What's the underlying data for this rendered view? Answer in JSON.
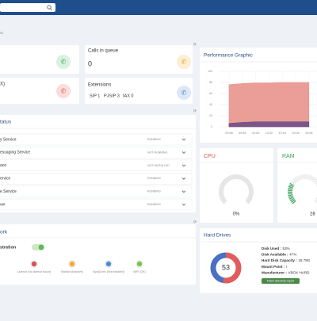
{
  "breadcrumb": "nt",
  "card3_title": "X)",
  "calls_card": {
    "title": "Calls in queue",
    "value": "0"
  },
  "extensions_card": {
    "title": "Extensions",
    "sip": "SIP 1",
    "pjsip": "PJSIP 3",
    "iax": "IAX 0"
  },
  "status": {
    "title": "tatus",
    "rows": [
      {
        "name": "y Service",
        "state": "RUNNING"
      },
      {
        "name": "essaging Service",
        "state": "NOT RUNNING"
      },
      {
        "name": "ace",
        "state": "NOT INSTALLED"
      },
      {
        "name": "ervice",
        "state": "RUNNING"
      },
      {
        "name": "e Service",
        "state": "RUNNING"
      },
      {
        "name": "ver",
        "state": "RUNNING"
      }
    ]
  },
  "network": {
    "title": "ork",
    "registration": "stration",
    "items": [
      {
        "label": "License (No license found)",
        "color": "#d9534f"
      },
      {
        "label": "Monitor (Inactive)",
        "color": "#f0ad2e"
      },
      {
        "label": "SysADmin (Not installed)",
        "color": "#4a90d9"
      },
      {
        "label": "WiFi (OK)",
        "color": "#7dc24b"
      }
    ]
  },
  "performance": {
    "title": "Performance Graphic",
    "chart": {
      "type": "area",
      "categories": [
        "09:56",
        "09:58",
        "10:00",
        "10:02",
        "10:04",
        "10:06",
        "10:08"
      ],
      "ylim": [
        0,
        100
      ],
      "yticks": [
        0,
        20,
        40,
        60,
        80,
        100
      ],
      "series": [
        {
          "color": "#e8948c",
          "values": [
            76,
            78,
            79,
            79,
            80,
            80,
            80
          ]
        },
        {
          "color": "#6e4f86",
          "values": [
            6,
            8,
            9,
            9,
            9,
            9,
            9
          ]
        }
      ]
    }
  },
  "cpu": {
    "title": "CPU",
    "value": 0,
    "value_label": "0%",
    "color": "#d9534f"
  },
  "ram": {
    "title": "RAM",
    "value": 28,
    "value_label": "28",
    "color": "#3aa35a"
  },
  "hard_drives": {
    "title": "Hard Drives",
    "chart": {
      "center_label": "53",
      "values": [
        53,
        47
      ],
      "colors": [
        "#e05d5d",
        "#4a6fc4"
      ]
    },
    "details": [
      {
        "label": "Disk Used :",
        "value": "53%"
      },
      {
        "label": "Disk Available :",
        "value": "47%"
      },
      {
        "label": "Hard Disk Capacity :",
        "value": "15.79G"
      },
      {
        "label": "Mount Point :",
        "value": "/"
      },
      {
        "label": "Manufacturer :",
        "value": "VBOX HARD"
      }
    ],
    "button": "Fetch directory report"
  }
}
